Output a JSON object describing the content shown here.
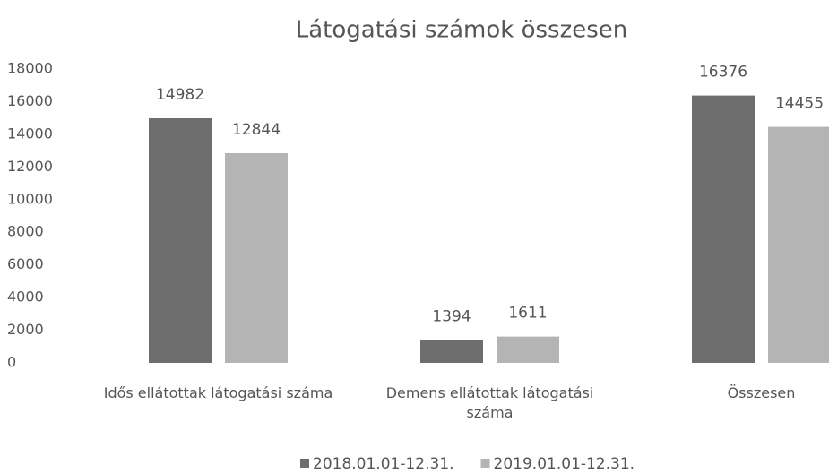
{
  "chart_data": {
    "type": "bar",
    "title": "Látogatási számok összesen",
    "categories": [
      "Idős ellátottak látogatási száma",
      "Demens ellátottak látogatási száma",
      "Összesen"
    ],
    "series": [
      {
        "name": "2018.01.01-12.31.",
        "color": "#6e6e6e",
        "values": [
          14982,
          1394,
          16376
        ]
      },
      {
        "name": "2019.01.01-12.31.",
        "color": "#b4b4b4",
        "values": [
          12844,
          1611,
          14455
        ]
      }
    ],
    "ylim": [
      0,
      18000
    ],
    "yticks": [
      0,
      2000,
      4000,
      6000,
      8000,
      10000,
      12000,
      14000,
      16000,
      18000
    ],
    "grid": false,
    "legend": "bottom"
  }
}
